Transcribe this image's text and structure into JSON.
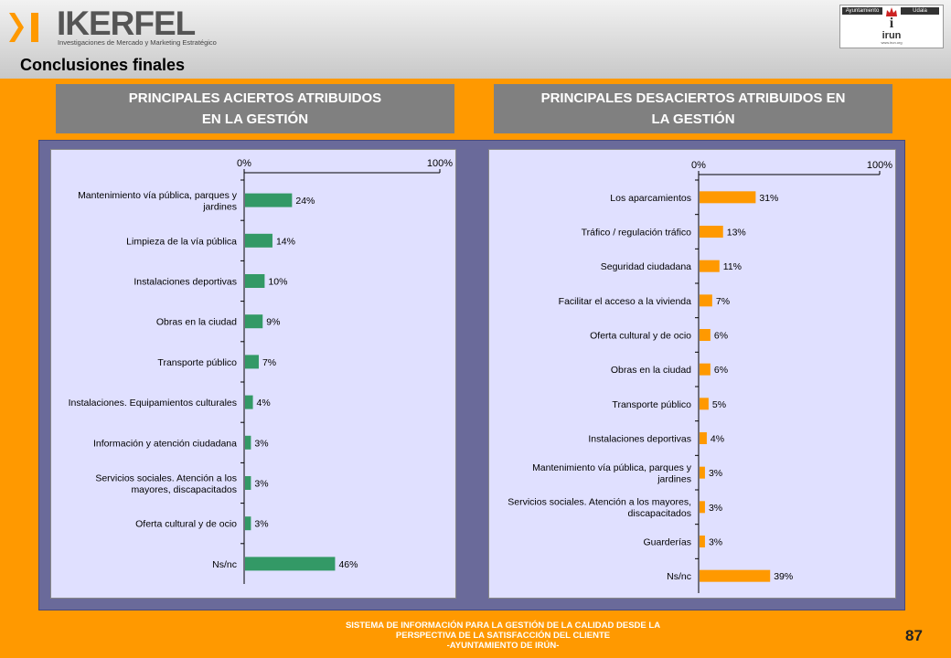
{
  "header": {
    "brand_name": "IKERFEL",
    "brand_tagline": "Investigaciones de Mercado y Marketing Estratégico",
    "partner": {
      "left_label": "Ayuntamiento",
      "right_label": "Udala",
      "name": "irun",
      "url": "www.irun.org"
    },
    "page_title": "Conclusiones finales"
  },
  "colors": {
    "background": "#FF9900",
    "left_bars": "#339966",
    "right_bars": "#FF9900",
    "panel": "#E0E0FF"
  },
  "chart_data": [
    {
      "type": "bar",
      "orientation": "horizontal",
      "title": "PRINCIPALES ACIERTOS ATRIBUIDOS EN LA GESTIÓN",
      "title_lines": [
        "PRINCIPALES ACIERTOS ATRIBUIDOS",
        "EN LA GESTIÓN"
      ],
      "axis_min_label": "0%",
      "axis_max_label": "100%",
      "xlim": [
        0,
        100
      ],
      "bar_color": "#339966",
      "categories": [
        [
          "Mantenimiento vía pública, parques y",
          "jardines"
        ],
        [
          "Limpieza de la vía pública"
        ],
        [
          "Instalaciones deportivas"
        ],
        [
          "Obras en la ciudad"
        ],
        [
          "Transporte público"
        ],
        [
          "Instalaciones.  Equipamientos culturales"
        ],
        [
          "Información y atención ciudadana"
        ],
        [
          "Servicios sociales. Atención a los",
          "mayores, discapacitados"
        ],
        [
          "Oferta cultural y  de ocio"
        ],
        [
          "Ns/nc"
        ]
      ],
      "values": [
        24,
        14,
        10,
        9,
        7,
        4,
        3,
        3,
        3,
        46
      ],
      "value_labels": [
        "24%",
        "14%",
        "10%",
        "9%",
        "7%",
        "4%",
        "3%",
        "3%",
        "3%",
        "46%"
      ]
    },
    {
      "type": "bar",
      "orientation": "horizontal",
      "title": "PRINCIPALES DESACIERTOS ATRIBUIDOS EN LA GESTIÓN",
      "title_lines": [
        "PRINCIPALES DESACIERTOS ATRIBUIDOS EN",
        "LA GESTIÓN"
      ],
      "axis_min_label": "0%",
      "axis_max_label": "100%",
      "xlim": [
        0,
        100
      ],
      "bar_color": "#FF9900",
      "categories": [
        [
          "Los aparcamientos"
        ],
        [
          "Tráfico / regulación tráfico"
        ],
        [
          "Seguridad ciudadana"
        ],
        [
          "Facilitar el acceso a la vivienda"
        ],
        [
          "Oferta cultural y de ocio"
        ],
        [
          "Obras en la ciudad"
        ],
        [
          "Transporte público"
        ],
        [
          "Instalaciones deportivas"
        ],
        [
          "Mantenimiento vía pública, parques y",
          "jardines"
        ],
        [
          "Servicios sociales. Atención a los mayores,",
          "discapacitados"
        ],
        [
          "Guarderías"
        ],
        [
          "Ns/nc"
        ]
      ],
      "values": [
        31,
        13,
        11,
        7,
        6,
        6,
        5,
        4,
        3,
        3,
        3,
        39
      ],
      "value_labels": [
        "31%",
        "13%",
        "11%",
        "7%",
        "6%",
        "6%",
        "5%",
        "4%",
        "3%",
        "3%",
        "3%",
        "39%"
      ]
    }
  ],
  "footer": {
    "lines": [
      "SISTEMA DE INFORMACIÓN PARA LA GESTIÓN DE LA CALIDAD DESDE LA",
      "PERSPECTIVA DE LA SATISFACCIÓN DEL CLIENTE",
      "-AYUNTAMIENTO DE IRÚN-"
    ],
    "page_number": "87"
  }
}
